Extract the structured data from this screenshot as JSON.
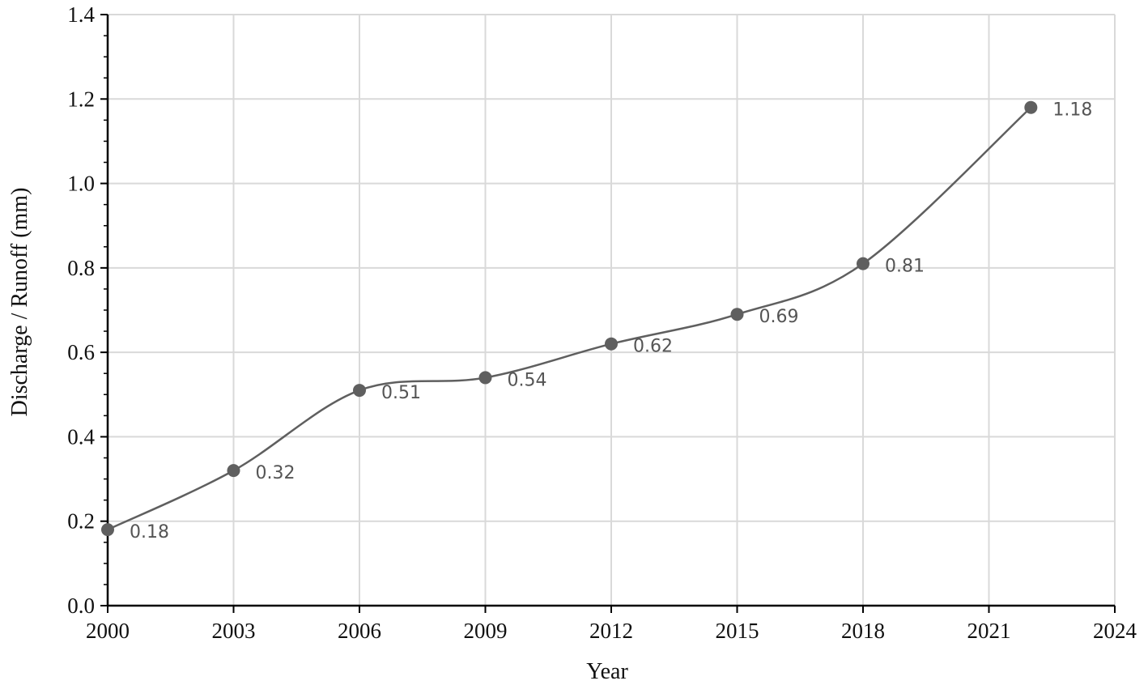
{
  "chart_data": {
    "type": "line",
    "title": "",
    "xlabel": "Year",
    "ylabel": "Discharge / Runoff (mm)",
    "xlim": [
      2000,
      2024
    ],
    "ylim": [
      0,
      1.4
    ],
    "x_ticks": [
      2000,
      2003,
      2006,
      2009,
      2012,
      2015,
      2018,
      2021,
      2024
    ],
    "y_ticks": [
      "0.0",
      "0.2",
      "0.4",
      "0.6",
      "0.8",
      "1.0",
      "1.2",
      "1.4"
    ],
    "grid": true,
    "legend": "none",
    "smooth": true,
    "colors": {
      "line": "#5f5f5f",
      "marker": "#5f5f5f",
      "grid": "#d9d9d9",
      "axis": "#000000",
      "label": "#555555"
    },
    "series": [
      {
        "x": [
          2000,
          2003,
          2006,
          2009,
          2012,
          2015,
          2018,
          2022
        ],
        "y": [
          0.18,
          0.32,
          0.51,
          0.54,
          0.62,
          0.69,
          0.81,
          1.18
        ],
        "labels": [
          "0.18",
          "0.32",
          "0.51",
          "0.54",
          "0.62",
          "0.69",
          "0.81",
          "1.18"
        ]
      }
    ]
  }
}
